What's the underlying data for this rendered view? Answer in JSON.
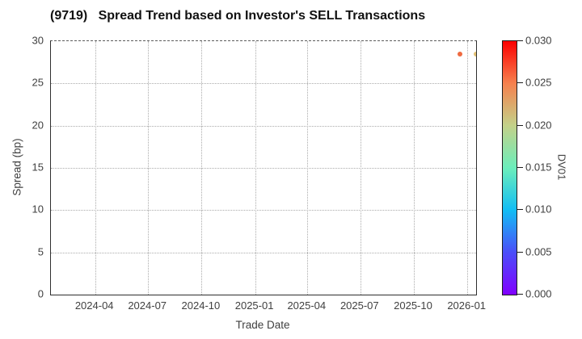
{
  "chart_data": {
    "type": "scatter",
    "title": "(9719)   Spread Trend based on Investor's SELL Transactions",
    "xlabel": "Trade Date",
    "ylabel": "Spread (bp)",
    "ylim": [
      0,
      30
    ],
    "yticks": [
      0,
      5,
      10,
      15,
      20,
      25,
      30
    ],
    "xticks": [
      "2024-04",
      "2024-07",
      "2024-10",
      "2025-01",
      "2025-04",
      "2025-07",
      "2025-10",
      "2026-01"
    ],
    "x_range": [
      "2024-01-16",
      "2026-01-16"
    ],
    "grid": true,
    "grid_style": "dotted",
    "legend_position": "none",
    "points": [
      {
        "trade_date": "2025-12-19",
        "spread_bp": 28.5,
        "dv01": 0.026,
        "color": "#ef6a40"
      },
      {
        "trade_date": "2026-01-16",
        "spread_bp": 28.5,
        "dv01": 0.021,
        "color": "#e3c173"
      }
    ],
    "colorbar": {
      "label": "DV01",
      "min": 0.0,
      "max": 0.03,
      "tick_labels": [
        "0.030",
        "0.025",
        "0.020",
        "0.015",
        "0.010",
        "0.005",
        "0.000"
      ],
      "colormap": "rainbow",
      "gradient_stops_bottom_to_top": [
        "#8000ff",
        "#4b4ef9",
        "#12bdf4",
        "#6ceebb",
        "#c3d189",
        "#f6814e",
        "#fc0000"
      ]
    }
  }
}
